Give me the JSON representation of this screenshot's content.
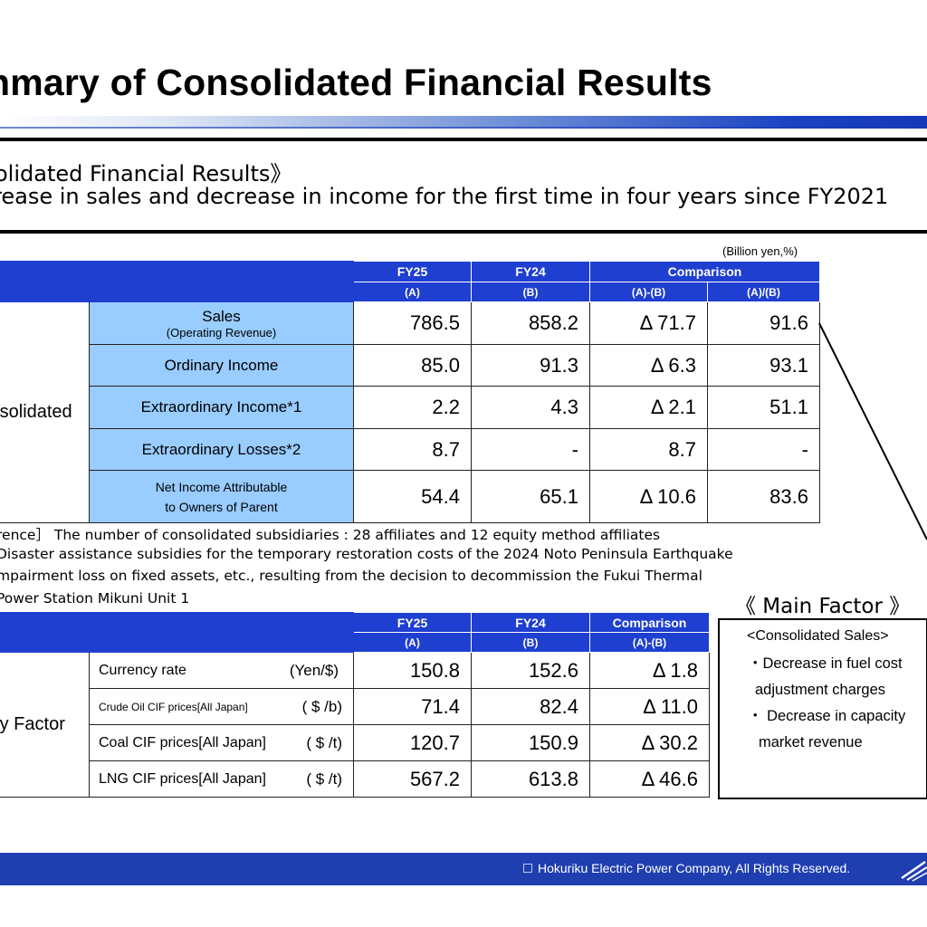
{
  "title": "nmary of Consolidated Financial Results",
  "highlight": {
    "heading": "olidated Financial Results》",
    "subheading": "rease in sales and decrease in income for the first time in four years since FY2021"
  },
  "unit_note": "(Billion yen,%)",
  "results_table": {
    "headers": {
      "fy25": "FY25",
      "fy25_sub": "(A)",
      "fy24": "FY24",
      "fy24_sub": "(B)",
      "comparison": "Comparison",
      "diff": "(A)-(B)",
      "ratio": "(A)/(B)"
    },
    "group_label": "nsolidated",
    "rows": [
      {
        "label": "Sales",
        "sublabel": "(Operating Revenue)",
        "fy25": "786.5",
        "fy24": "858.2",
        "diff": "Δ 71.7",
        "ratio": "91.6"
      },
      {
        "label": "Ordinary Income",
        "sublabel": "",
        "fy25": "85.0",
        "fy24": "91.3",
        "diff": "Δ 6.3",
        "ratio": "93.1"
      },
      {
        "label": "Extraordinary Income*1",
        "sublabel": "",
        "fy25": "2.2",
        "fy24": "4.3",
        "diff": "Δ 2.1",
        "ratio": "51.1"
      },
      {
        "label": "Extraordinary Losses*2",
        "sublabel": "",
        "fy25": "8.7",
        "fy24": "-",
        "diff": "8.7",
        "ratio": "-"
      },
      {
        "label": "Net Income Attributable",
        "sublabel": "to Owners of Parent",
        "fy25": "54.4",
        "fy24": "65.1",
        "diff": "Δ 10.6",
        "ratio": "83.6"
      }
    ]
  },
  "footnotes": [
    "rence］  The number of consolidated subsidiaries : 28 affiliates and 12 equity method affiliates",
    "Disaster assistance subsidies for the temporary restoration costs of the 2024 Noto Peninsula Earthquake",
    "mpairment loss on fixed assets, etc., resulting from the decision to decommission the Fukui Thermal",
    "Power Station Mikuni Unit 1"
  ],
  "key_factor_table": {
    "headers": {
      "fy25": "FY25",
      "fy25_sub": "(A)",
      "fy24": "FY24",
      "fy24_sub": "(B)",
      "comparison": "Comparison",
      "comparison_sub": "(A)-(B)"
    },
    "group_label": "ey Factor",
    "rows": [
      {
        "label": "Currency rate",
        "unit": "(Yen/$)",
        "fy25": "150.8",
        "fy24": "152.6",
        "diff": "Δ 1.8"
      },
      {
        "label": "Crude Oil CIF prices[All Japan]",
        "unit": "( $ /b)",
        "fy25": "71.4",
        "fy24": "82.4",
        "diff": "Δ 11.0"
      },
      {
        "label": "Coal CIF prices[All Japan]",
        "unit": "( $ /t)",
        "fy25": "120.7",
        "fy24": "150.9",
        "diff": "Δ 30.2"
      },
      {
        "label": "LNG CIF prices[All Japan]",
        "unit": "( $ /t)",
        "fy25": "567.2",
        "fy24": "613.8",
        "diff": "Δ 46.6"
      }
    ]
  },
  "main_factor": {
    "title": "《 Main Factor 》",
    "heading": "<Consolidated Sales>",
    "items": [
      "・Decrease in fuel cost",
      "adjustment charges",
      "・ Decrease in capacity",
      "market revenue"
    ]
  },
  "footer": {
    "copyright": "Hokuriku Electric Power Company, All  Rights  Reserved."
  },
  "colors": {
    "header_blue": "#1f3fd0",
    "label_blue": "#99ccff",
    "footer_blue": "#1f3fb0"
  }
}
